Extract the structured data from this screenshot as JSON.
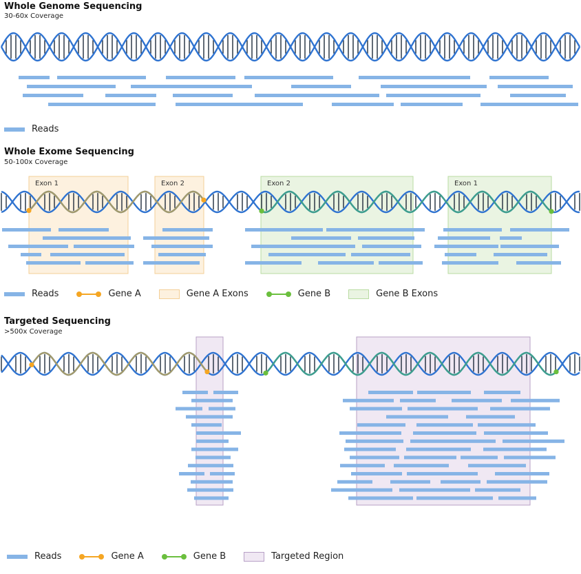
{
  "colors": {
    "dna": "#2f73d0",
    "rung": "#1d2a3a",
    "read": "#86b4e6",
    "geneA": "#f5a623",
    "geneB": "#6bbf3e",
    "geneA_strand": "#a39a6a",
    "geneB_strand": "#3e9f8c",
    "geneA_box_fill": "#fdf1df",
    "geneA_box_stroke": "#f3cf97",
    "geneB_box_fill": "#eaf4e2",
    "geneB_box_stroke": "#b8dba1",
    "target_fill": "#f0e8f3",
    "target_stroke": "#b7a0c6"
  },
  "sections": {
    "wgs": {
      "title": "Whole Genome Sequencing",
      "coverage": "30-60x Coverage"
    },
    "wes": {
      "title": "Whole Exome Sequencing",
      "coverage": "50-100x Coverage"
    },
    "ts": {
      "title": "Targeted Sequencing",
      "coverage": ">500x Coverage"
    }
  },
  "exons": [
    {
      "label": "Exon 1",
      "gene": "A"
    },
    {
      "label": "Exon 2",
      "gene": "A"
    },
    {
      "label": "Exon 2",
      "gene": "B"
    },
    {
      "label": "Exon 1",
      "gene": "B"
    }
  ],
  "legends": {
    "wgs": {
      "reads": "Reads"
    },
    "wes": {
      "reads": "Reads",
      "gene_a": "Gene A",
      "gene_a_exons": "Gene A Exons",
      "gene_b": "Gene B",
      "gene_b_exons": "Gene B Exons"
    },
    "ts": {
      "reads": "Reads",
      "gene_a": "Gene A",
      "gene_b": "Gene B",
      "targeted_region": "Targeted Region"
    }
  }
}
